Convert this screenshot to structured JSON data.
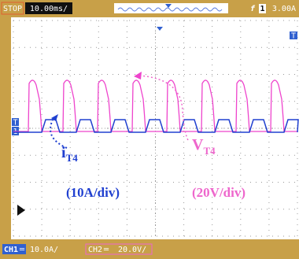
{
  "status_bar": {
    "run_state": "STOP",
    "timebase": "10.00ms/",
    "trigger_slope": "f",
    "trigger_source": "1",
    "trigger_level": "3.00A"
  },
  "markers": {
    "trigger_left": "T",
    "ch1_ground": "1",
    "trigger_right": "T"
  },
  "annotations": {
    "current_label": "i",
    "current_subscript": "T4",
    "voltage_label": "V",
    "voltage_subscript": "T4",
    "current_scale": "(10A/div)",
    "voltage_scale": "(20V/div)"
  },
  "channel_bar": {
    "ch1_label": "CH1",
    "ch1_coupling": "═",
    "ch1_scale": "10.0A/",
    "ch2_label": "CH2",
    "ch2_coupling": "═",
    "ch2_scale": "20.0V/"
  }
}
